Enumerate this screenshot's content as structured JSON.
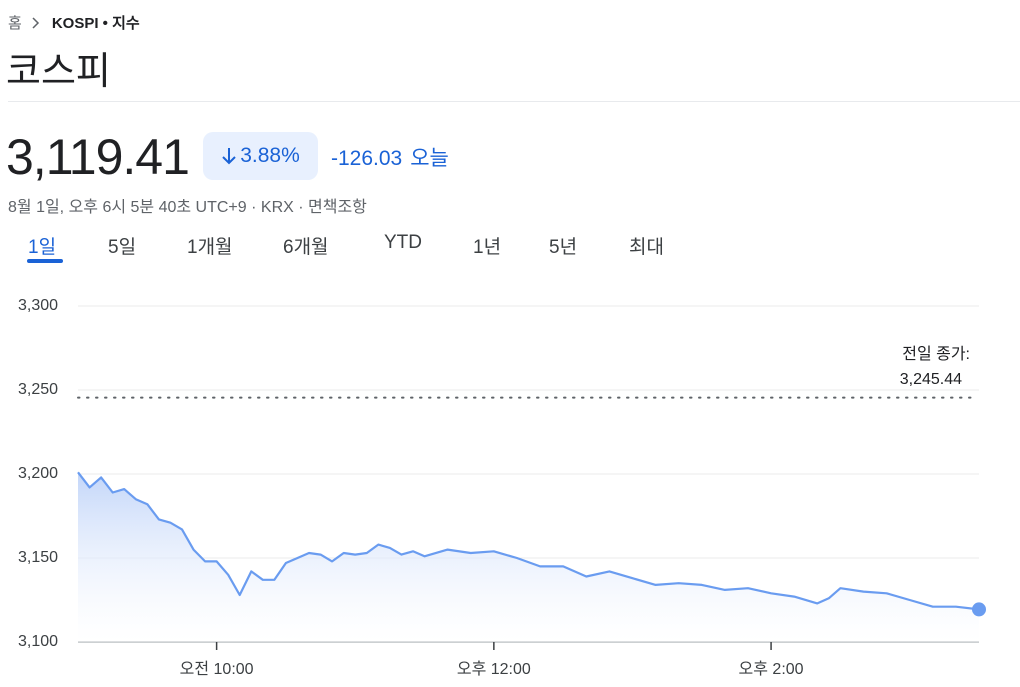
{
  "breadcrumb": [
    "홈",
    "KOSPI • 지수"
  ],
  "title": "코스피",
  "price": "3,119.41",
  "change_percent": "3.88%",
  "change": "-126.03",
  "change_period": "오늘",
  "subtitle": "8월 1일, 오후 6시 5분 40초 UTC+9 · KRX · 면책조항",
  "tabs": [
    "1일",
    "5일",
    "1개월",
    "6개월",
    "YTD",
    "1년",
    "5년",
    "최대"
  ],
  "chart_data": {
    "type": "line",
    "color": "#6a9cf0",
    "x": [
      "09:00",
      "09:05",
      "09:10",
      "09:15",
      "09:20",
      "09:25",
      "09:30",
      "09:35",
      "09:40",
      "09:45",
      "09:50",
      "09:55",
      "10:00",
      "10:05",
      "10:10",
      "10:15",
      "10:20",
      "10:25",
      "10:30",
      "10:35",
      "10:40",
      "10:45",
      "10:50",
      "10:55",
      "11:00",
      "11:05",
      "11:10",
      "11:15",
      "11:20",
      "11:25",
      "11:30",
      "11:40",
      "11:50",
      "12:00",
      "12:10",
      "12:20",
      "12:30",
      "12:40",
      "12:50",
      "13:00",
      "13:10",
      "13:20",
      "13:30",
      "13:40",
      "13:50",
      "14:00",
      "14:10",
      "14:20",
      "14:25",
      "14:30",
      "14:40",
      "14:50",
      "15:00",
      "15:10",
      "15:20",
      "15:30"
    ],
    "values": [
      3201,
      3192,
      3198,
      3189,
      3191,
      3185,
      3182,
      3173,
      3171,
      3167,
      3155,
      3148,
      3148,
      3140,
      3128,
      3142,
      3137,
      3137,
      3147,
      3150,
      3153,
      3152,
      3148,
      3153,
      3152,
      3153,
      3158,
      3156,
      3152,
      3154,
      3151,
      3155,
      3153,
      3154,
      3150,
      3145,
      3145,
      3139,
      3142,
      3138,
      3134,
      3135,
      3134,
      3131,
      3132,
      3129,
      3127,
      3123,
      3126,
      3132,
      3130,
      3129,
      3125,
      3121,
      3121,
      3119.41
    ],
    "xlim": [
      "09:00",
      "15:30"
    ],
    "xticks": [
      {
        "value": "10:00",
        "label": "오전 10:00"
      },
      {
        "value": "12:00",
        "label": "오후 12:00"
      },
      {
        "value": "14:00",
        "label": "오후 2:00"
      }
    ],
    "ylim": [
      3100,
      3300
    ],
    "yticks": [
      {
        "value": 3100,
        "label": "3,100"
      },
      {
        "value": 3150,
        "label": "3,150"
      },
      {
        "value": 3200,
        "label": "3,200"
      },
      {
        "value": 3250,
        "label": "3,250"
      },
      {
        "value": 3300,
        "label": "3,300"
      }
    ],
    "grid": true,
    "annotations": [
      {
        "text": "전일 종가:",
        "value": 3245.44,
        "value_label": "3,245.44"
      }
    ]
  }
}
